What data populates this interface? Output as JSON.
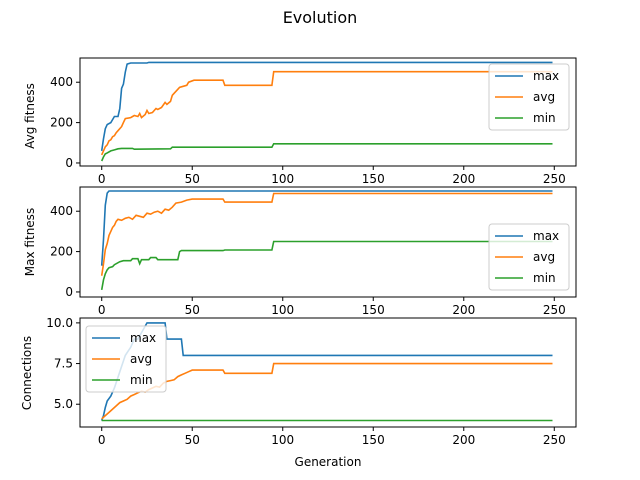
{
  "figure_title": "Evolution",
  "colors": {
    "max": "#1f77b4",
    "avg": "#ff7f0e",
    "min": "#2ca02c",
    "axis": "#000000",
    "legend_edge": "#cccccc"
  },
  "chart_data": [
    {
      "type": "line",
      "title": "",
      "xlabel": "",
      "ylabel": "Avg fitness",
      "xlim": [
        -12,
        262
      ],
      "ylim": [
        -15,
        520
      ],
      "xticks": [
        0,
        50,
        100,
        150,
        200,
        250
      ],
      "yticks": [
        0,
        200,
        400
      ],
      "show_xtick_labels": true,
      "legend": "right-upper",
      "series": [
        {
          "name": "max",
          "color": "#1f77b4",
          "points": [
            [
              0,
              60
            ],
            [
              1,
              120
            ],
            [
              2,
              170
            ],
            [
              3,
              190
            ],
            [
              5,
              200
            ],
            [
              7,
              230
            ],
            [
              9,
              230
            ],
            [
              10,
              270
            ],
            [
              11,
              370
            ],
            [
              12,
              390
            ],
            [
              13,
              450
            ],
            [
              14,
              490
            ],
            [
              16,
              495
            ],
            [
              25,
              495
            ],
            [
              26,
              498
            ],
            [
              249,
              498
            ]
          ]
        },
        {
          "name": "avg",
          "color": "#ff7f0e",
          "points": [
            [
              0,
              40
            ],
            [
              2,
              80
            ],
            [
              3,
              90
            ],
            [
              4,
              110
            ],
            [
              5,
              115
            ],
            [
              6,
              130
            ],
            [
              7,
              135
            ],
            [
              8,
              150
            ],
            [
              9,
              160
            ],
            [
              11,
              180
            ],
            [
              12,
              200
            ],
            [
              13,
              220
            ],
            [
              16,
              225
            ],
            [
              18,
              235
            ],
            [
              20,
              230
            ],
            [
              21,
              245
            ],
            [
              22,
              225
            ],
            [
              24,
              240
            ],
            [
              25,
              260
            ],
            [
              26,
              245
            ],
            [
              28,
              250
            ],
            [
              30,
              270
            ],
            [
              31,
              265
            ],
            [
              33,
              275
            ],
            [
              35,
              300
            ],
            [
              36,
              290
            ],
            [
              38,
              305
            ],
            [
              39,
              335
            ],
            [
              40,
              345
            ],
            [
              42,
              365
            ],
            [
              43,
              375
            ],
            [
              45,
              380
            ],
            [
              47,
              385
            ],
            [
              48,
              400
            ],
            [
              51,
              410
            ],
            [
              67,
              410
            ],
            [
              68,
              385
            ],
            [
              94,
              385
            ],
            [
              95,
              452
            ],
            [
              249,
              452
            ]
          ]
        },
        {
          "name": "min",
          "color": "#2ca02c",
          "points": [
            [
              0,
              10
            ],
            [
              1,
              30
            ],
            [
              2,
              45
            ],
            [
              3,
              50
            ],
            [
              5,
              60
            ],
            [
              7,
              65
            ],
            [
              9,
              70
            ],
            [
              11,
              72
            ],
            [
              17,
              72
            ],
            [
              18,
              68
            ],
            [
              38,
              70
            ],
            [
              39,
              78
            ],
            [
              94,
              78
            ],
            [
              95,
              95
            ],
            [
              249,
              95
            ]
          ]
        }
      ]
    },
    {
      "type": "line",
      "title": "",
      "xlabel": "",
      "ylabel": "Max fitness",
      "xlim": [
        -12,
        262
      ],
      "ylim": [
        -25,
        520
      ],
      "xticks": [
        0,
        50,
        100,
        150,
        200,
        250
      ],
      "yticks": [
        0,
        200,
        400
      ],
      "show_xtick_labels": true,
      "legend": "right-lower",
      "series": [
        {
          "name": "max",
          "color": "#1f77b4",
          "points": [
            [
              0,
              130
            ],
            [
              1,
              260
            ],
            [
              2,
              430
            ],
            [
              3,
              490
            ],
            [
              4,
              500
            ],
            [
              94,
              500
            ],
            [
              95,
              500
            ],
            [
              249,
              500
            ]
          ]
        },
        {
          "name": "avg",
          "color": "#ff7f0e",
          "points": [
            [
              0,
              80
            ],
            [
              1,
              140
            ],
            [
              2,
              210
            ],
            [
              3,
              240
            ],
            [
              4,
              280
            ],
            [
              5,
              300
            ],
            [
              6,
              320
            ],
            [
              7,
              330
            ],
            [
              8,
              350
            ],
            [
              9,
              360
            ],
            [
              11,
              355
            ],
            [
              13,
              365
            ],
            [
              15,
              370
            ],
            [
              17,
              360
            ],
            [
              19,
              380
            ],
            [
              21,
              375
            ],
            [
              23,
              370
            ],
            [
              25,
              390
            ],
            [
              27,
              385
            ],
            [
              29,
              395
            ],
            [
              31,
              400
            ],
            [
              33,
              390
            ],
            [
              35,
              410
            ],
            [
              37,
              405
            ],
            [
              39,
              420
            ],
            [
              41,
              440
            ],
            [
              44,
              445
            ],
            [
              47,
              455
            ],
            [
              50,
              460
            ],
            [
              67,
              460
            ],
            [
              68,
              445
            ],
            [
              94,
              445
            ],
            [
              95,
              488
            ],
            [
              249,
              488
            ]
          ]
        },
        {
          "name": "min",
          "color": "#2ca02c",
          "points": [
            [
              0,
              10
            ],
            [
              1,
              60
            ],
            [
              2,
              90
            ],
            [
              3,
              110
            ],
            [
              4,
              120
            ],
            [
              6,
              125
            ],
            [
              7,
              135
            ],
            [
              10,
              150
            ],
            [
              12,
              155
            ],
            [
              16,
              155
            ],
            [
              17,
              165
            ],
            [
              20,
              165
            ],
            [
              21,
              140
            ],
            [
              22,
              160
            ],
            [
              26,
              160
            ],
            [
              27,
              170
            ],
            [
              30,
              170
            ],
            [
              31,
              160
            ],
            [
              42,
              160
            ],
            [
              43,
              200
            ],
            [
              44,
              205
            ],
            [
              67,
              205
            ],
            [
              68,
              208
            ],
            [
              94,
              208
            ],
            [
              95,
              250
            ],
            [
              249,
              250
            ]
          ]
        }
      ]
    },
    {
      "type": "line",
      "title": "",
      "xlabel": "Generation",
      "ylabel": "Connections",
      "xlim": [
        -12,
        262
      ],
      "ylim": [
        3.6,
        10.3
      ],
      "xticks": [
        0,
        50,
        100,
        150,
        200,
        250
      ],
      "yticks": [
        5.0,
        7.5,
        10.0
      ],
      "ytick_labels": [
        "5.0",
        "7.5",
        "10.0"
      ],
      "show_xtick_labels": true,
      "legend": "upper-left",
      "series": [
        {
          "name": "max",
          "color": "#1f77b4",
          "points": [
            [
              0,
              4
            ],
            [
              1,
              4.3
            ],
            [
              2,
              4.8
            ],
            [
              3,
              5.2
            ],
            [
              5,
              5.5
            ],
            [
              7,
              6
            ],
            [
              10,
              7
            ],
            [
              13,
              8
            ],
            [
              16,
              8.5
            ],
            [
              18,
              9
            ],
            [
              20,
              9
            ],
            [
              25,
              10
            ],
            [
              35,
              10
            ],
            [
              36,
              9
            ],
            [
              44,
              9
            ],
            [
              45,
              8
            ],
            [
              249,
              8
            ]
          ]
        },
        {
          "name": "avg",
          "color": "#ff7f0e",
          "points": [
            [
              0,
              4.1
            ],
            [
              2,
              4.3
            ],
            [
              4,
              4.5
            ],
            [
              6,
              4.7
            ],
            [
              8,
              4.9
            ],
            [
              10,
              5.1
            ],
            [
              12,
              5.2
            ],
            [
              14,
              5.3
            ],
            [
              16,
              5.5
            ],
            [
              18,
              5.6
            ],
            [
              20,
              5.7
            ],
            [
              22,
              5.8
            ],
            [
              24,
              5.75
            ],
            [
              26,
              5.9
            ],
            [
              28,
              6
            ],
            [
              30,
              6.1
            ],
            [
              32,
              6.05
            ],
            [
              34,
              6.3
            ],
            [
              36,
              6.4
            ],
            [
              38,
              6.45
            ],
            [
              40,
              6.5
            ],
            [
              42,
              6.7
            ],
            [
              44,
              6.8
            ],
            [
              46,
              6.9
            ],
            [
              48,
              7
            ],
            [
              50,
              7.1
            ],
            [
              67,
              7.1
            ],
            [
              68,
              6.9
            ],
            [
              94,
              6.9
            ],
            [
              95,
              7.5
            ],
            [
              249,
              7.5
            ]
          ]
        },
        {
          "name": "min",
          "color": "#2ca02c",
          "points": [
            [
              0,
              4
            ],
            [
              249,
              4
            ]
          ]
        }
      ]
    }
  ]
}
